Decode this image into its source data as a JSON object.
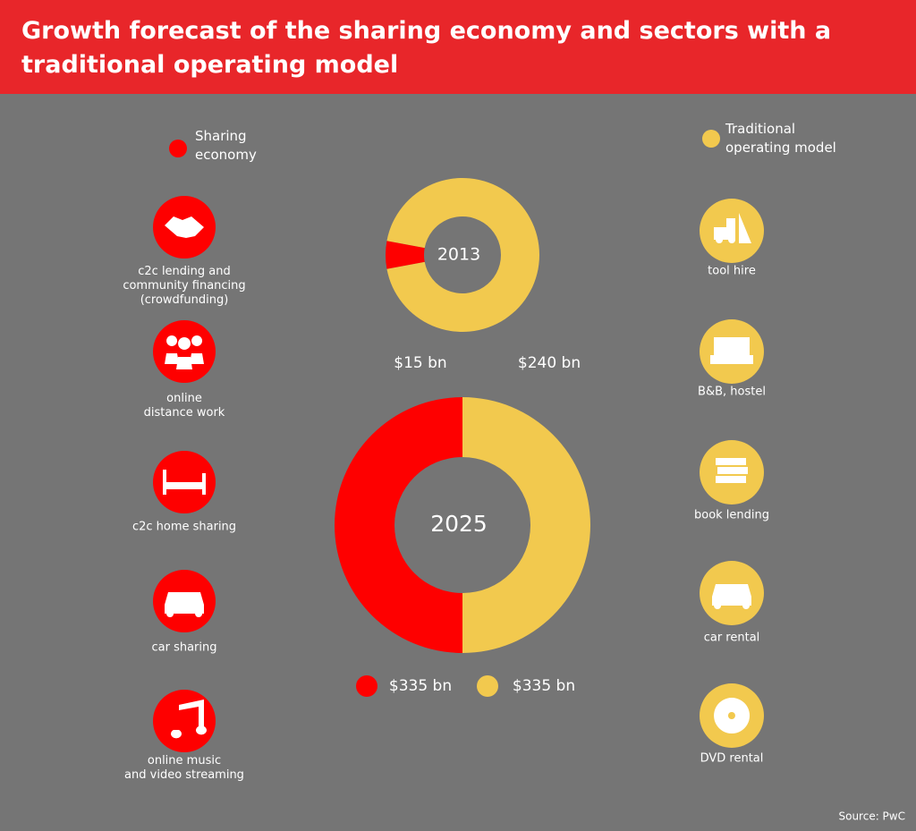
{
  "header": {
    "title": "Growth forecast of the sharing economy and sectors with a traditional operating model"
  },
  "legend": [
    {
      "name": "Sharing\neconomy",
      "color": "#fe0000"
    },
    {
      "name": "Traditional\noperating model",
      "color": "#f2c94e"
    }
  ],
  "sharing_sectors": [
    "c2c lending and\ncommunity financing\n(crowdfunding)",
    "online\ndistance work",
    "c2c home sharing",
    "car sharing",
    "online music\nand video streaming"
  ],
  "traditional_sectors": [
    "tool hire",
    "B&B, hostel",
    "book lending",
    "car rental",
    "DVD rental"
  ],
  "chart_data": [
    {
      "type": "donut",
      "center_label": "2013",
      "values": [
        15,
        240
      ],
      "value_labels": [
        "$15 bn",
        "$240 bn"
      ],
      "colors": [
        "#fe0000",
        "#f2c94e"
      ]
    },
    {
      "type": "donut",
      "center_label": "2025",
      "values": [
        335,
        335
      ],
      "value_labels": [
        "$335 bn",
        "$335 bn"
      ],
      "colors": [
        "#fe0000",
        "#f2c94e"
      ]
    }
  ],
  "source": "Source: PwC"
}
